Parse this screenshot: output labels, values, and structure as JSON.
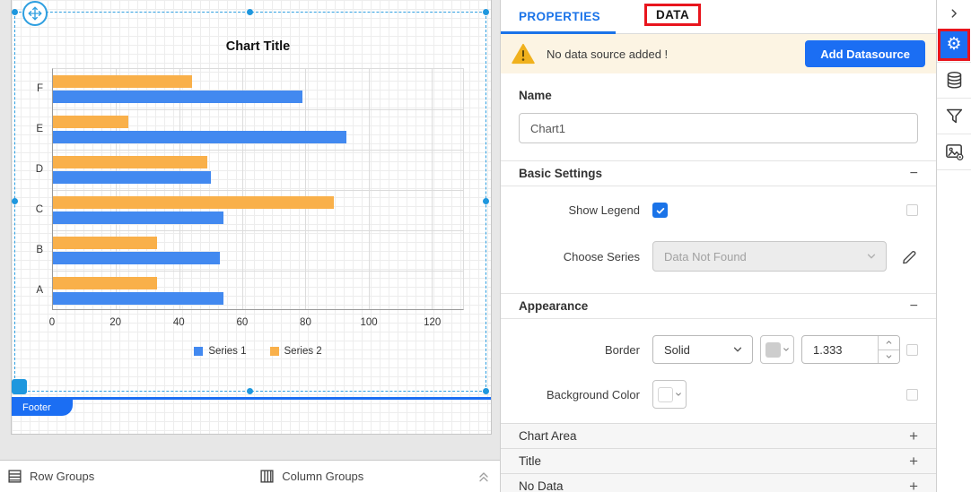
{
  "chart_data": {
    "type": "bar",
    "orientation": "horizontal",
    "title": "Chart Title",
    "categories": [
      "A",
      "B",
      "C",
      "D",
      "E",
      "F"
    ],
    "series": [
      {
        "name": "Series 1",
        "color": "#4289f0",
        "values": [
          54,
          53,
          54,
          50,
          93,
          79
        ]
      },
      {
        "name": "Series 2",
        "color": "#f9b04a",
        "values": [
          33,
          33,
          89,
          49,
          24,
          44
        ]
      }
    ],
    "x_ticks": [
      0,
      20,
      40,
      60,
      80,
      100,
      120
    ],
    "xlim": [
      0,
      130
    ],
    "grid": true,
    "legend_position": "bottom"
  },
  "canvas": {
    "footer_tab_label": "Footer",
    "bottom_bar": {
      "row_groups_label": "Row Groups",
      "column_groups_label": "Column Groups",
      "collapse_icon": "double-chevron-up"
    }
  },
  "panel": {
    "tabs": [
      {
        "label": "PROPERTIES",
        "active": true
      },
      {
        "label": "DATA",
        "active": false,
        "annotated": true
      }
    ],
    "warning": {
      "text": "No data source added !",
      "button_label": "Add Datasource",
      "icon": "warning-triangle"
    },
    "name_section": {
      "label": "Name",
      "value": "Chart1"
    },
    "basic_settings": {
      "title": "Basic Settings",
      "collapse_glyph": "−",
      "show_legend_label": "Show Legend",
      "show_legend_checked": true,
      "choose_series_label": "Choose Series",
      "choose_series_value": "Data Not Found",
      "choose_series_disabled": true
    },
    "appearance": {
      "title": "Appearance",
      "collapse_glyph": "−",
      "border_label": "Border",
      "border_style": "Solid",
      "border_color_swatch": "#cdcdcd",
      "border_width": "1.333",
      "background_color_label": "Background Color",
      "background_color_swatch": "#ffffff"
    },
    "collapsed_sections": [
      {
        "label": "Chart Area",
        "glyph": "+"
      },
      {
        "label": "Title",
        "glyph": "+"
      },
      {
        "label": "No Data",
        "glyph": "+"
      }
    ]
  },
  "toolbar": {
    "icons": [
      {
        "name": "collapse-panel-chevron"
      },
      {
        "name": "settings-gear",
        "highlighted": true
      },
      {
        "name": "datasource-database"
      },
      {
        "name": "filter-funnel"
      },
      {
        "name": "image-settings"
      }
    ]
  },
  "annotations": {
    "highlight_color": "#e8151d",
    "targets": [
      "data-tab",
      "settings-gear-icon"
    ]
  },
  "colors": {
    "accent": "#1b6ef3",
    "tab_active": "#1a73e8",
    "series1": "#4289f0",
    "series2": "#f9b04a",
    "selection": "#2e9fe0",
    "warning_bg": "#fcf4e3",
    "warning_icon": "#f0b11d",
    "annotation_red": "#e8151d"
  }
}
